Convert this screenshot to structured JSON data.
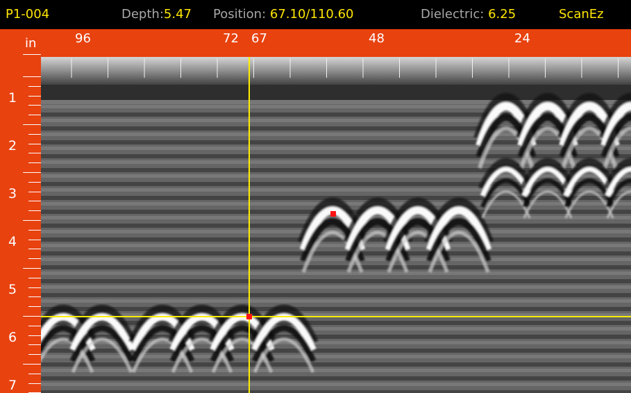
{
  "status": {
    "file": "P1-004",
    "depth_label": "Depth:",
    "depth_value": "5.47",
    "position_label": "Position:",
    "position_value": "67.10/110.60",
    "dielectric_label": "Dielectric:",
    "dielectric_value": "6.25",
    "app_name": "ScanEz"
  },
  "horizontal_ruler": {
    "unit": "in",
    "labels": [
      "96",
      "72",
      "67",
      "48",
      "24"
    ]
  },
  "vertical_ruler": {
    "labels": [
      "1",
      "2",
      "3",
      "4",
      "5",
      "6",
      "7"
    ]
  },
  "colors": {
    "ruler": "#e8420f",
    "status_value": "#ffe600",
    "status_label": "#a8a8a8",
    "crosshair": "#ffee00",
    "marker": "#ff1414"
  }
}
